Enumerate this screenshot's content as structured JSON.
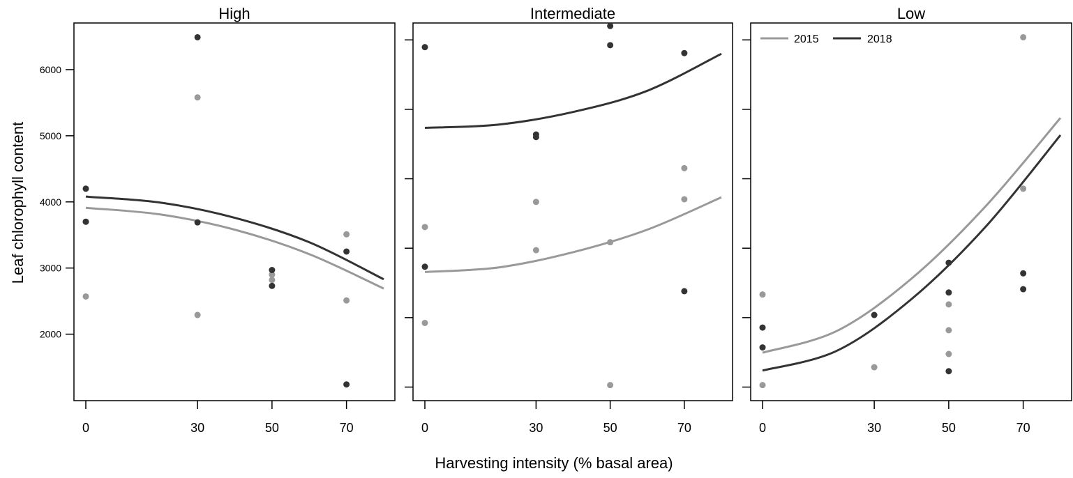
{
  "figure": {
    "xlabel": "Harvesting intensity (% basal area)",
    "ylabel": "Leaf chlorophyll content"
  },
  "legend": {
    "items": [
      {
        "label": "2015",
        "color": "#999999"
      },
      {
        "label": "2018",
        "color": "#333333"
      }
    ],
    "placement": "top-left of Low panel"
  },
  "chart_data": [
    {
      "type": "scatter",
      "title": "High",
      "xlabel": "Harvesting intensity (% basal area)",
      "ylabel": "Leaf chlorophyll content",
      "xlim": [
        0,
        80
      ],
      "ylim": [
        1100,
        6600
      ],
      "x_ticks": [
        0,
        30,
        50,
        70
      ],
      "y_ticks": [
        2000,
        3000,
        4000,
        5000,
        6000
      ],
      "show_y_tick_labels": true,
      "series": [
        {
          "name": "2015",
          "color": "#999999",
          "points": [
            [
              0,
              3700
            ],
            [
              0,
              2570
            ],
            [
              30,
              5580
            ],
            [
              30,
              2290
            ],
            [
              50,
              2900
            ],
            [
              50,
              2820
            ],
            [
              70,
              3510
            ],
            [
              70,
              2510
            ]
          ],
          "fit": [
            [
              0,
              3910
            ],
            [
              20,
              3810
            ],
            [
              40,
              3580
            ],
            [
              60,
              3210
            ],
            [
              80,
              2690
            ]
          ]
        },
        {
          "name": "2018",
          "color": "#333333",
          "points": [
            [
              0,
              4200
            ],
            [
              0,
              3700
            ],
            [
              30,
              6490
            ],
            [
              30,
              3690
            ],
            [
              50,
              2970
            ],
            [
              50,
              2730
            ],
            [
              70,
              3250
            ],
            [
              70,
              1240
            ]
          ],
          "fit": [
            [
              0,
              4080
            ],
            [
              20,
              3990
            ],
            [
              40,
              3760
            ],
            [
              60,
              3390
            ],
            [
              80,
              2830
            ]
          ]
        }
      ]
    },
    {
      "type": "scatter",
      "title": "Intermediate",
      "xlabel": "Harvesting intensity (% basal area)",
      "ylabel": "",
      "xlim": [
        0,
        80
      ],
      "ylim": [
        1100,
        6600
      ],
      "x_ticks": [
        0,
        30,
        50,
        70
      ],
      "y_ticks": [
        1200,
        2250,
        3300,
        4350,
        5400,
        6450
      ],
      "show_y_tick_labels": false,
      "series": [
        {
          "name": "2015",
          "color": "#999999",
          "points": [
            [
              0,
              3620
            ],
            [
              0,
              2170
            ],
            [
              30,
              4000
            ],
            [
              30,
              3270
            ],
            [
              50,
              3390
            ],
            [
              50,
              1230
            ],
            [
              70,
              4510
            ],
            [
              70,
              4040
            ]
          ],
          "fit": [
            [
              0,
              2940
            ],
            [
              20,
              3010
            ],
            [
              40,
              3240
            ],
            [
              60,
              3580
            ],
            [
              80,
              4070
            ]
          ]
        },
        {
          "name": "2018",
          "color": "#333333",
          "points": [
            [
              0,
              6340
            ],
            [
              0,
              3020
            ],
            [
              30,
              5020
            ],
            [
              30,
              4980
            ],
            [
              50,
              6660
            ],
            [
              50,
              6370
            ],
            [
              70,
              6250
            ],
            [
              70,
              2650
            ]
          ],
          "fit": [
            [
              0,
              5120
            ],
            [
              20,
              5170
            ],
            [
              40,
              5360
            ],
            [
              60,
              5680
            ],
            [
              80,
              6240
            ]
          ]
        }
      ]
    },
    {
      "type": "scatter",
      "title": "Low",
      "xlabel": "Harvesting intensity (% basal area)",
      "ylabel": "",
      "xlim": [
        0,
        80
      ],
      "ylim": [
        1100,
        6600
      ],
      "x_ticks": [
        0,
        30,
        50,
        70
      ],
      "y_ticks": [
        1200,
        2250,
        3300,
        4350,
        5400,
        6450
      ],
      "show_y_tick_labels": false,
      "series": [
        {
          "name": "2015",
          "color": "#999999",
          "points": [
            [
              0,
              2600
            ],
            [
              0,
              1230
            ],
            [
              30,
              1500
            ],
            [
              50,
              2450
            ],
            [
              50,
              2060
            ],
            [
              50,
              1700
            ],
            [
              70,
              6490
            ],
            [
              70,
              4200
            ]
          ],
          "fit": [
            [
              0,
              1720
            ],
            [
              20,
              2050
            ],
            [
              40,
              2840
            ],
            [
              60,
              3940
            ],
            [
              80,
              5270
            ]
          ]
        },
        {
          "name": "2018",
          "color": "#333333",
          "points": [
            [
              0,
              2100
            ],
            [
              0,
              1800
            ],
            [
              30,
              2290
            ],
            [
              50,
              3080
            ],
            [
              50,
              2630
            ],
            [
              50,
              1440
            ],
            [
              70,
              2920
            ],
            [
              70,
              2680
            ]
          ],
          "fit": [
            [
              0,
              1450
            ],
            [
              20,
              1750
            ],
            [
              40,
              2530
            ],
            [
              60,
              3630
            ],
            [
              80,
              5010
            ]
          ]
        }
      ]
    }
  ]
}
